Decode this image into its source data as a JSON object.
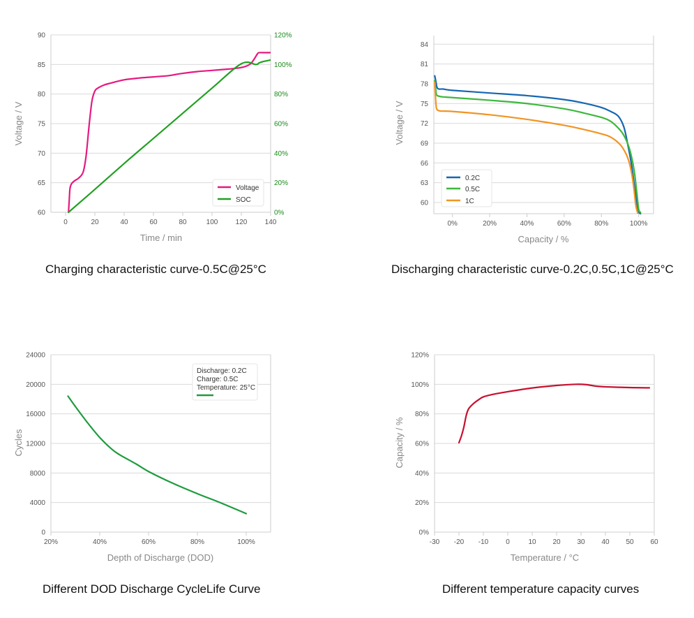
{
  "captions": {
    "c1": "Charging characteristic curve-0.5C@25°C",
    "c2": "Discharging characteristic curve-0.2C,0.5C,1C@25°C",
    "c3": "Different DOD Discharge CycleLife Curve",
    "c4": "Different temperature capacity curves"
  },
  "colors": {
    "voltage": "#e6197f",
    "soc": "#22a022",
    "c02": "#1566b0",
    "c05": "#3cb83c",
    "c1": "#f29422",
    "dod": "#1e9b3e",
    "temp": "#c8102e",
    "grid": "#d9d9d9",
    "axis": "#cccccc",
    "green_tick": "#1a8a1a"
  },
  "chart_data": [
    {
      "id": "charging",
      "type": "line",
      "xlabel": "Time / min",
      "ylabel": "Voltage / V",
      "xlim": [
        -10,
        140
      ],
      "ylim": [
        60,
        90
      ],
      "y2lim": [
        0,
        120
      ],
      "xticks": [
        "0",
        "20",
        "40",
        "60",
        "80",
        "100",
        "120",
        "140"
      ],
      "yticks": [
        "60",
        "65",
        "70",
        "75",
        "80",
        "85",
        "90"
      ],
      "y2ticks": [
        "0%",
        "20%",
        "40%",
        "60%",
        "80%",
        "100%",
        "120%"
      ],
      "grid": true,
      "legend": "bottom-right",
      "series": [
        {
          "name": "Voltage",
          "axis": "left",
          "x": [
            2,
            2.5,
            3,
            4,
            6,
            9,
            12,
            14,
            16,
            18,
            20,
            22,
            26,
            30,
            40,
            50,
            60,
            70,
            75,
            80,
            90,
            100,
            110,
            118,
            122,
            125,
            127,
            129,
            131,
            132,
            135,
            140
          ],
          "y": [
            60,
            62,
            64,
            64.8,
            65.3,
            65.8,
            66.8,
            69.5,
            74.5,
            78.8,
            80.5,
            81,
            81.5,
            81.8,
            82.4,
            82.7,
            82.9,
            83.1,
            83.3,
            83.5,
            83.8,
            84,
            84.2,
            84.4,
            84.6,
            84.9,
            85.3,
            86,
            86.8,
            87,
            87,
            87
          ]
        },
        {
          "name": "SOC",
          "axis": "right",
          "x": [
            2,
            20,
            40,
            60,
            80,
            100,
            120,
            130,
            132,
            135,
            140
          ],
          "y": [
            0,
            15.5,
            33,
            50,
            67,
            84,
            100.5,
            100,
            101,
            102,
            103
          ]
        }
      ]
    },
    {
      "id": "discharging",
      "type": "line",
      "xlabel": "Capacity / %",
      "ylabel": "Voltage / V",
      "xlim": [
        -10,
        108
      ],
      "ylim": [
        58.3,
        85.3
      ],
      "xticks": [
        "0%",
        "20%",
        "40%",
        "60%",
        "80%",
        "100%"
      ],
      "yticks": [
        "60",
        "63",
        "66",
        "69",
        "72",
        "75",
        "78",
        "81",
        "84"
      ],
      "grid": true,
      "legend": "bottom-left",
      "series": [
        {
          "name": "0.2C",
          "x": [
            -9.5,
            -9,
            -8,
            -5,
            0,
            20,
            40,
            60,
            70,
            80,
            85,
            89,
            92,
            94,
            96,
            97.5,
            99,
            100,
            101
          ],
          "y": [
            79.2,
            78.5,
            77.3,
            77.2,
            77.0,
            76.6,
            76.2,
            75.6,
            75.1,
            74.4,
            73.8,
            73.1,
            71.5,
            69.0,
            66.0,
            63.0,
            60.0,
            58.6,
            58.3
          ]
        },
        {
          "name": "0.5C",
          "x": [
            -9.5,
            -9,
            -8.5,
            -7,
            -5,
            0,
            20,
            40,
            60,
            70,
            80,
            85,
            89,
            92,
            95,
            97.5,
            99,
            100,
            101
          ],
          "y": [
            78.5,
            77.2,
            76.3,
            76.1,
            76.0,
            75.9,
            75.5,
            75.0,
            74.2,
            73.6,
            72.9,
            72.3,
            71.3,
            70.2,
            68.2,
            65.0,
            61.5,
            59.0,
            58.5
          ]
        },
        {
          "name": "1C",
          "x": [
            -9.5,
            -9,
            -8.5,
            -7,
            -5,
            0,
            20,
            40,
            60,
            70,
            80,
            85,
            90,
            93,
            95,
            96.5,
            97.5,
            98.5,
            99.5
          ],
          "y": [
            78.2,
            75.5,
            74.2,
            73.9,
            73.85,
            73.8,
            73.3,
            72.6,
            71.7,
            71.1,
            70.4,
            69.9,
            68.8,
            67.5,
            66.0,
            64.0,
            62.0,
            59.5,
            58.4
          ]
        }
      ]
    },
    {
      "id": "dod",
      "type": "line",
      "xlabel": "Depth of Discharge (DOD)",
      "ylabel": "Cycles",
      "xlim": [
        20,
        110
      ],
      "ylim": [
        0,
        24000
      ],
      "xticks": [
        "20%",
        "40%",
        "60%",
        "80%",
        "100%"
      ],
      "yticks": [
        "0",
        "4000",
        "8000",
        "12000",
        "16000",
        "20000",
        "24000"
      ],
      "grid": true,
      "legend": "top-right",
      "series": [
        {
          "name": "",
          "x": [
            27,
            30,
            35,
            40,
            45,
            48,
            55,
            60,
            70,
            80,
            90,
            100
          ],
          "y": [
            18400,
            17000,
            14800,
            12800,
            11200,
            10500,
            9200,
            8200,
            6600,
            5200,
            3900,
            2500
          ]
        }
      ],
      "annotation": {
        "discharge": "Discharge:  0.2C",
        "charge": "Charge:  0.5C",
        "temperature": "Temperature: 25°C"
      }
    },
    {
      "id": "temperature",
      "type": "line",
      "xlabel": "Temperature / °C",
      "ylabel": "Capacity / %",
      "xlim": [
        -30,
        60
      ],
      "ylim": [
        0,
        120
      ],
      "xticks": [
        "-30",
        "-20",
        "-10",
        "0",
        "10",
        "20",
        "30",
        "40",
        "50",
        "60"
      ],
      "yticks": [
        "0%",
        "20%",
        "40%",
        "60%",
        "80%",
        "100%",
        "120%"
      ],
      "grid": true,
      "series": [
        {
          "name": "",
          "x": [
            -20,
            -19,
            -18,
            -17,
            -16,
            -14,
            -12,
            -10,
            -6,
            0,
            10,
            20,
            28,
            32,
            36,
            40,
            50,
            58
          ],
          "y": [
            60.5,
            65,
            71,
            79,
            83.5,
            87,
            89.5,
            91.5,
            93.2,
            95,
            97.5,
            99.2,
            100,
            99.8,
            98.8,
            98.3,
            97.8,
            97.6
          ]
        }
      ]
    }
  ]
}
